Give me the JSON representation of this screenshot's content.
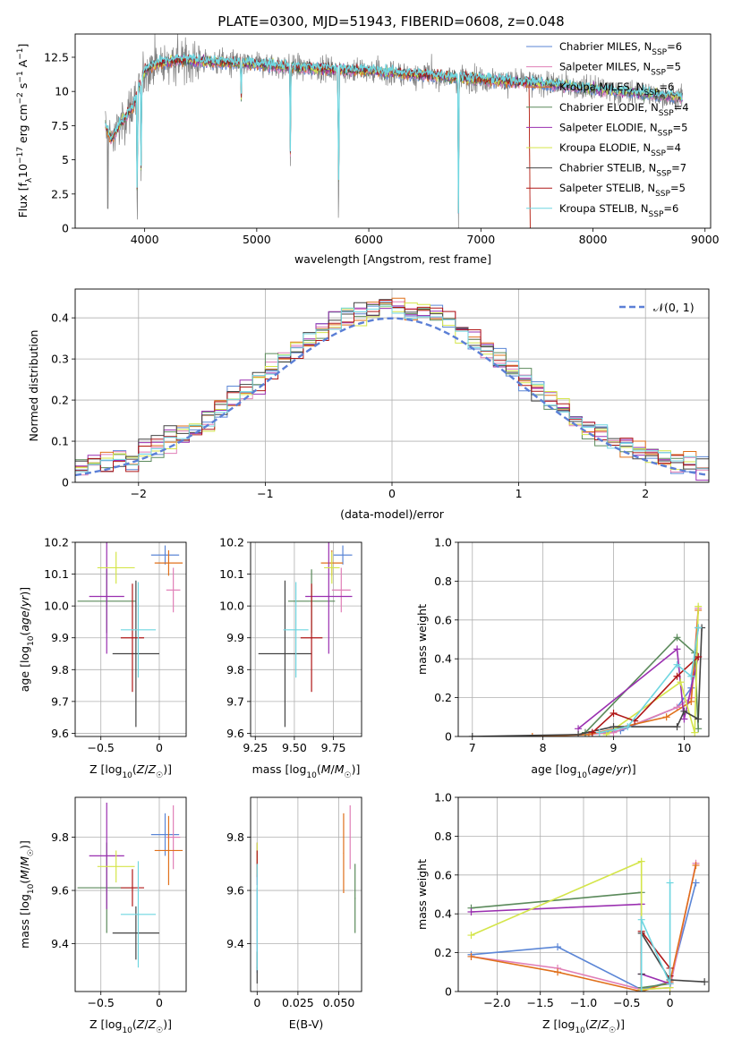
{
  "figure_title": "PLATE=0300, MJD=51943, FIBERID=0608, z=0.048",
  "colors": {
    "Chabrier MILES": "#5b86d6",
    "Salpeter MILES": "#e07fb7",
    "Kroupa MILES": "#e0701b",
    "Chabrier ELODIE": "#5b8a5b",
    "Salpeter ELODIE": "#9a2fb0",
    "Kroupa ELODIE": "#d4e54a",
    "Chabrier STELIB": "#444444",
    "Salpeter STELIB": "#b01818",
    "Kroupa STELIB": "#6fd6e0",
    "data": "#808080",
    "normal": "#5b7fd6"
  },
  "chart_data": [
    {
      "id": "spectrum",
      "type": "line",
      "title": "PLATE=0300, MJD=51943, FIBERID=0608, z=0.048",
      "xlabel": "wavelength [Angstrom, rest frame]",
      "ylabel": "Flux [fλ10⁻¹⁷ erg cm⁻² s⁻¹ A⁻¹]",
      "xlim": [
        3380,
        9050
      ],
      "ylim": [
        0,
        14.2
      ],
      "xticks": [
        4000,
        5000,
        6000,
        7000,
        8000,
        9000
      ],
      "yticks": [
        0.0,
        2.5,
        5.0,
        7.5,
        10.0,
        12.5
      ],
      "grid": false,
      "legend_position": "top-right",
      "legend": [
        "Chabrier MILES, NSSP=6",
        "Salpeter MILES, NSSP=5",
        "Kroupa MILES, NSSP=6",
        "Chabrier ELODIE, NSSP=4",
        "Salpeter ELODIE, NSSP=5",
        "Kroupa ELODIE, NSSP=4",
        "Chabrier STELIB, NSSP=7",
        "Salpeter STELIB, NSSP=5",
        "Kroupa STELIB, NSSP=6"
      ],
      "continuum": {
        "x": [
          3650,
          3700,
          3800,
          3900,
          4000,
          4100,
          4300,
          4500,
          5000,
          5500,
          6000,
          6500,
          7000,
          7500,
          8000,
          8500,
          8800
        ],
        "y": [
          7.5,
          6.5,
          7.8,
          9.0,
          11.5,
          12.0,
          12.3,
          12.2,
          12.0,
          11.7,
          11.5,
          11.2,
          10.9,
          10.6,
          10.2,
          9.8,
          9.6
        ]
      },
      "absorption_lines": [
        {
          "x": 3934,
          "depth": 1.0
        },
        {
          "x": 3969,
          "depth": 0.7
        },
        {
          "x": 4861,
          "depth": 0.25
        },
        {
          "x": 5300,
          "depth": 0.6
        },
        {
          "x": 5730,
          "depth": 1.0
        },
        {
          "x": 6800,
          "depth": 1.0
        }
      ]
    },
    {
      "id": "residuals",
      "type": "histogram",
      "xlabel": "(data-model)/error",
      "ylabel": "Normed distribution",
      "xlim": [
        -2.5,
        2.5
      ],
      "ylim": [
        0,
        0.47
      ],
      "xticks": [
        -2,
        -1,
        0,
        1,
        2
      ],
      "yticks": [
        0.0,
        0.1,
        0.2,
        0.3,
        0.4
      ],
      "grid": true,
      "legend_position": "top-right",
      "legend": [
        "𝒩(0, 1)"
      ],
      "bin_width": 0.1
    },
    {
      "id": "age_vs_z",
      "type": "scatter",
      "xlabel": "Z [log10(Z/Z☉)]",
      "ylabel": "age  [log10(age/yr)]",
      "xlim": [
        -0.72,
        0.23
      ],
      "ylim": [
        9.59,
        10.2
      ],
      "xticks": [
        -0.5,
        0.0
      ],
      "yticks": [
        9.6,
        9.7,
        9.8,
        9.9,
        10.0,
        10.1,
        10.2
      ],
      "grid": true,
      "points": [
        {
          "model": "Chabrier MILES",
          "x": 0.05,
          "xerr": 0.12,
          "y": 10.16,
          "yerr": 0.03
        },
        {
          "model": "Salpeter MILES",
          "x": 0.12,
          "xerr": 0.06,
          "y": 10.05,
          "yerr": 0.07
        },
        {
          "model": "Kroupa MILES",
          "x": 0.08,
          "xerr": 0.12,
          "y": 10.135,
          "yerr": 0.04
        },
        {
          "model": "Chabrier ELODIE",
          "x": -0.45,
          "xerr": 0.25,
          "y": 10.015,
          "yerr": 0.1
        },
        {
          "model": "Salpeter ELODIE",
          "x": -0.45,
          "xerr": 0.15,
          "y": 10.03,
          "yerr": 0.18
        },
        {
          "model": "Kroupa ELODIE",
          "x": -0.37,
          "xerr": 0.16,
          "y": 10.12,
          "yerr": 0.05
        },
        {
          "model": "Chabrier STELIB",
          "x": -0.2,
          "xerr": 0.2,
          "y": 9.85,
          "yerr": 0.23
        },
        {
          "model": "Salpeter STELIB",
          "x": -0.23,
          "xerr": 0.1,
          "y": 9.9,
          "yerr": 0.17
        },
        {
          "model": "Kroupa STELIB",
          "x": -0.18,
          "xerr": 0.15,
          "y": 9.925,
          "yerr": 0.15
        }
      ]
    },
    {
      "id": "age_vs_mass",
      "type": "scatter",
      "xlabel": "mass [log10(M/M☉)]",
      "ylabel": "",
      "xlim": [
        9.22,
        9.93
      ],
      "ylim": [
        9.59,
        10.2
      ],
      "xticks": [
        9.25,
        9.5,
        9.75
      ],
      "yticks": [
        9.6,
        9.7,
        9.8,
        9.9,
        10.0,
        10.1,
        10.2
      ],
      "grid": true,
      "points": [
        {
          "model": "Chabrier MILES",
          "x": 9.81,
          "xerr": 0.06,
          "y": 10.16,
          "yerr": 0.03
        },
        {
          "model": "Salpeter MILES",
          "x": 9.8,
          "xerr": 0.06,
          "y": 10.05,
          "yerr": 0.07
        },
        {
          "model": "Kroupa MILES",
          "x": 9.74,
          "xerr": 0.07,
          "y": 10.135,
          "yerr": 0.04
        },
        {
          "model": "Chabrier ELODIE",
          "x": 9.61,
          "xerr": 0.15,
          "y": 10.015,
          "yerr": 0.1
        },
        {
          "model": "Salpeter ELODIE",
          "x": 9.72,
          "xerr": 0.15,
          "y": 10.03,
          "yerr": 0.18
        },
        {
          "model": "Kroupa ELODIE",
          "x": 9.74,
          "xerr": 0.05,
          "y": 10.12,
          "yerr": 0.05
        },
        {
          "model": "Chabrier STELIB",
          "x": 9.44,
          "xerr": 0.17,
          "y": 9.85,
          "yerr": 0.23
        },
        {
          "model": "Salpeter STELIB",
          "x": 9.61,
          "xerr": 0.07,
          "y": 9.9,
          "yerr": 0.17
        },
        {
          "model": "Kroupa STELIB",
          "x": 9.51,
          "xerr": 0.08,
          "y": 9.925,
          "yerr": 0.15
        }
      ]
    },
    {
      "id": "weight_vs_age",
      "type": "line",
      "xlabel": "age  [log10(age/yr)]",
      "ylabel": "mass weight",
      "xlim": [
        6.8,
        10.35
      ],
      "ylim": [
        0,
        1.0
      ],
      "xticks": [
        7,
        8,
        9,
        10
      ],
      "yticks": [
        0.0,
        0.2,
        0.4,
        0.6,
        0.8,
        1.0
      ],
      "grid": true,
      "series": [
        {
          "model": "Chabrier MILES",
          "x": [
            8.6,
            9.1,
            9.9,
            10.1,
            10.2
          ],
          "y": [
            0.01,
            0.03,
            0.15,
            0.25,
            0.56
          ]
        },
        {
          "model": "Salpeter MILES",
          "x": [
            8.6,
            9.0,
            9.9,
            10.1,
            10.2
          ],
          "y": [
            0.01,
            0.02,
            0.15,
            0.2,
            0.66
          ]
        },
        {
          "model": "Kroupa MILES",
          "x": [
            7.85,
            8.65,
            9.75,
            10.1,
            10.2
          ],
          "y": [
            0.0,
            0.01,
            0.1,
            0.18,
            0.65
          ]
        },
        {
          "model": "Chabrier ELODIE",
          "x": [
            8.6,
            9.9,
            10.15,
            10.2
          ],
          "y": [
            0.02,
            0.51,
            0.43,
            0.04
          ]
        },
        {
          "model": "Salpeter ELODIE",
          "x": [
            8.5,
            9.9,
            10.0,
            10.2
          ],
          "y": [
            0.04,
            0.45,
            0.09,
            0.41
          ]
        },
        {
          "model": "Kroupa ELODIE",
          "x": [
            8.9,
            9.95,
            10.15,
            10.2
          ],
          "y": [
            0.01,
            0.28,
            0.02,
            0.67
          ]
        },
        {
          "model": "Chabrier STELIB",
          "x": [
            7.0,
            8.5,
            9.0,
            9.9,
            10.0,
            10.2,
            10.25
          ],
          "y": [
            0.0,
            0.01,
            0.05,
            0.05,
            0.13,
            0.09,
            0.56
          ]
        },
        {
          "model": "Salpeter STELIB",
          "x": [
            8.7,
            9.0,
            9.3,
            9.9,
            10.2
          ],
          "y": [
            0.02,
            0.12,
            0.08,
            0.31,
            0.41
          ]
        },
        {
          "model": "Kroupa STELIB",
          "x": [
            8.8,
            9.2,
            9.9,
            10.1,
            10.2
          ],
          "y": [
            0.02,
            0.05,
            0.37,
            0.31,
            0.56
          ]
        }
      ]
    },
    {
      "id": "mass_vs_z",
      "type": "scatter",
      "xlabel": "Z [log10(Z/Z☉)]",
      "ylabel": "mass [log10(M/M☉)]",
      "xlim": [
        -0.72,
        0.23
      ],
      "ylim": [
        9.22,
        9.95
      ],
      "xticks": [
        -0.5,
        0.0
      ],
      "yticks": [
        9.4,
        9.6,
        9.8
      ],
      "grid": true,
      "points": [
        {
          "model": "Chabrier MILES",
          "x": 0.05,
          "xerr": 0.12,
          "y": 9.81,
          "yerr": 0.08
        },
        {
          "model": "Salpeter MILES",
          "x": 0.12,
          "xerr": 0.06,
          "y": 9.8,
          "yerr": 0.12
        },
        {
          "model": "Kroupa MILES",
          "x": 0.08,
          "xerr": 0.12,
          "y": 9.75,
          "yerr": 0.13
        },
        {
          "model": "Chabrier ELODIE",
          "x": -0.45,
          "xerr": 0.25,
          "y": 9.61,
          "yerr": 0.17
        },
        {
          "model": "Salpeter ELODIE",
          "x": -0.45,
          "xerr": 0.15,
          "y": 9.73,
          "yerr": 0.2
        },
        {
          "model": "Kroupa ELODIE",
          "x": -0.37,
          "xerr": 0.16,
          "y": 9.69,
          "yerr": 0.06
        },
        {
          "model": "Chabrier STELIB",
          "x": -0.2,
          "xerr": 0.2,
          "y": 9.44,
          "yerr": 0.1
        },
        {
          "model": "Salpeter STELIB",
          "x": -0.23,
          "xerr": 0.1,
          "y": 9.61,
          "yerr": 0.07
        },
        {
          "model": "Kroupa STELIB",
          "x": -0.18,
          "xerr": 0.15,
          "y": 9.51,
          "yerr": 0.2
        }
      ]
    },
    {
      "id": "mass_vs_ebv",
      "type": "scatter",
      "xlabel": "E(B-V)",
      "ylabel": "",
      "xlim": [
        -0.004,
        0.064
      ],
      "ylim": [
        9.22,
        9.95
      ],
      "xticks": [
        0.0,
        0.025,
        0.05
      ],
      "yticks": [
        9.4,
        9.6,
        9.8
      ],
      "grid": true,
      "points": [
        {
          "model": "Chabrier MILES",
          "x": 0.0,
          "xerr": 0.0003,
          "y": 9.45,
          "yerr": 0.16
        },
        {
          "model": "Salpeter MILES",
          "x": 0.057,
          "xerr": 0.0003,
          "y": 9.8,
          "yerr": 0.12
        },
        {
          "model": "Kroupa MILES",
          "x": 0.053,
          "xerr": 0.0003,
          "y": 9.74,
          "yerr": 0.15
        },
        {
          "model": "Chabrier ELODIE",
          "x": 0.06,
          "xerr": 0.0003,
          "y": 9.57,
          "yerr": 0.13
        },
        {
          "model": "Salpeter ELODIE",
          "x": 0.0,
          "xerr": 0.0003,
          "y": 9.7,
          "yerr": 0.08
        },
        {
          "model": "Kroupa ELODIE",
          "x": 0.0,
          "xerr": 0.0003,
          "y": 9.72,
          "yerr": 0.06
        },
        {
          "model": "Chabrier STELIB",
          "x": 0.0,
          "xerr": 0.0003,
          "y": 9.31,
          "yerr": 0.06
        },
        {
          "model": "Salpeter STELIB",
          "x": 0.0,
          "xerr": 0.0003,
          "y": 9.7,
          "yerr": 0.05
        },
        {
          "model": "Kroupa STELIB",
          "x": 0.0,
          "xerr": 0.0003,
          "y": 9.5,
          "yerr": 0.2
        }
      ]
    },
    {
      "id": "weight_vs_z",
      "type": "line",
      "xlabel": "Z [log10(Z/Z☉)]",
      "ylabel": "mass weight",
      "xlim": [
        -2.45,
        0.45
      ],
      "ylim": [
        0,
        1.0
      ],
      "xticks": [
        -2.0,
        -1.5,
        -1.0,
        -0.5,
        0.0
      ],
      "yticks": [
        0.0,
        0.2,
        0.4,
        0.6,
        0.8,
        1.0
      ],
      "grid": true,
      "series": [
        {
          "model": "Chabrier MILES",
          "x": [
            -2.3,
            -1.3,
            -0.33,
            0.0,
            0.3
          ],
          "y": [
            0.19,
            0.23,
            0.01,
            0.05,
            0.56
          ]
        },
        {
          "model": "Salpeter MILES",
          "x": [
            -2.3,
            -1.3,
            -0.33,
            0.0,
            0.3
          ],
          "y": [
            0.18,
            0.12,
            0.01,
            0.02,
            0.66
          ]
        },
        {
          "model": "Kroupa MILES",
          "x": [
            -2.3,
            -1.3,
            -0.33,
            0.0,
            0.3
          ],
          "y": [
            0.18,
            0.1,
            0.0,
            0.05,
            0.65
          ]
        },
        {
          "model": "Chabrier ELODIE",
          "x": [
            -2.3,
            -0.33,
            -0.33,
            0.0
          ],
          "y": [
            0.43,
            0.51,
            0.02,
            0.04
          ]
        },
        {
          "model": "Salpeter ELODIE",
          "x": [
            -2.3,
            -0.33,
            -0.33,
            0.0
          ],
          "y": [
            0.41,
            0.45,
            0.09,
            0.04
          ]
        },
        {
          "model": "Kroupa ELODIE",
          "x": [
            -2.3,
            -0.33,
            -0.33,
            0.0
          ],
          "y": [
            0.29,
            0.67,
            0.01,
            0.02
          ]
        },
        {
          "model": "Chabrier STELIB",
          "x": [
            -0.33,
            -0.33,
            -0.33,
            0.0,
            0.4
          ],
          "y": [
            0.0,
            0.09,
            0.3,
            0.06,
            0.05
          ]
        },
        {
          "model": "Salpeter STELIB",
          "x": [
            -0.33,
            -0.33,
            0.0,
            0.0
          ],
          "y": [
            0.0,
            0.31,
            0.12,
            0.08
          ]
        },
        {
          "model": "Kroupa STELIB",
          "x": [
            -0.33,
            -0.33,
            0.0,
            0.0
          ],
          "y": [
            0.0,
            0.37,
            0.04,
            0.56
          ]
        }
      ]
    }
  ]
}
